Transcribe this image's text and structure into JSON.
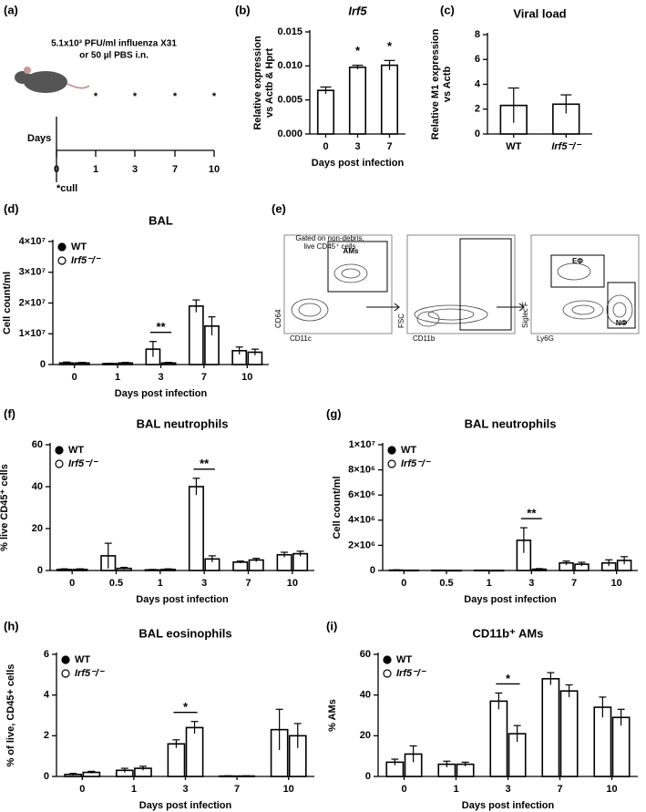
{
  "panel_a": {
    "panel_label": "(a)",
    "line1": "5.1x10³ PFU/ml influenza X31",
    "line2": "or 50 µl PBS i.n.",
    "axis_label": "Days",
    "days": [
      "0",
      "1",
      "3",
      "7",
      "10"
    ],
    "cull_marker": "*",
    "cull_note": "*cull"
  },
  "panel_e": {
    "panel_label": "(e)",
    "gate_note": [
      "Gated on non-debris,",
      "live CD45⁺ cells"
    ],
    "gate_am": "AMs",
    "plot1_y": "CD64",
    "plot1_x": "CD11c",
    "plot2_y": "FSC",
    "plot2_x": "CD11b",
    "plot3_y": "Siglec F",
    "plot3_x": "Ly6G",
    "gate_eos": "EΦ",
    "gate_neut": "NΦ"
  },
  "chart_data": [
    {
      "panel_label": "(b)",
      "type": "bar",
      "title": "Irf5",
      "title_italic": true,
      "ylabel": [
        "Relative expression",
        "vs Actb & Hprt"
      ],
      "xlabel": "Days post infection",
      "categories": [
        "0",
        "3",
        "7"
      ],
      "values": [
        0.0064,
        0.0098,
        0.0101
      ],
      "errors": [
        0.0005,
        0.0003,
        0.0007
      ],
      "ylim": [
        0,
        0.015
      ],
      "yticks": [
        {
          "value": 0,
          "label": "0.000"
        },
        {
          "value": 0.005,
          "label": "0.005"
        },
        {
          "value": 0.01,
          "label": "0.010"
        },
        {
          "value": 0.015,
          "label": "0.015"
        }
      ],
      "annotations": [
        {
          "label": "*",
          "category": "3"
        },
        {
          "label": "*",
          "category": "7"
        }
      ]
    },
    {
      "panel_label": "(c)",
      "type": "bar",
      "title": "Viral load",
      "ylabel": [
        "Relative M1 expression",
        "vs Actb"
      ],
      "categories": [
        "WT",
        "Irf5⁻/⁻"
      ],
      "values": [
        2.3,
        2.4
      ],
      "errors": [
        1.4,
        0.75
      ],
      "ylim": [
        0,
        8
      ],
      "yticks": [
        0,
        2,
        4,
        6,
        8
      ]
    },
    {
      "panel_label": "(d)",
      "type": "grouped_bar",
      "title": "BAL",
      "ylabel": [
        "Cell count/ml"
      ],
      "xlabel": "Days post infection",
      "categories": [
        "0",
        "1",
        "3",
        "7",
        "10"
      ],
      "legend": "upper left",
      "series": [
        {
          "name": "WT",
          "color": "#000000",
          "values": [
            500000,
            300000,
            5000000,
            19000000,
            4500000
          ],
          "errors": [
            300000,
            100000,
            2500000,
            2000000,
            1200000
          ]
        },
        {
          "name": "Irf5⁻/⁻",
          "color": "#ffffff",
          "values": [
            500000,
            500000,
            500000,
            12500000,
            4000000
          ],
          "errors": [
            200000,
            200000,
            200000,
            3000000,
            1000000
          ]
        }
      ],
      "ylim": [
        0,
        40000000
      ],
      "yticks": [
        0,
        {
          "value": 10000000,
          "label": "1×10⁷"
        },
        {
          "value": 20000000,
          "label": "2×10⁷"
        },
        {
          "value": 30000000,
          "label": "3×10⁷"
        },
        {
          "value": 40000000,
          "label": "4×10⁷"
        }
      ],
      "annotations": [
        {
          "label": "**",
          "category": "3"
        }
      ]
    },
    {
      "panel_label": "(f)",
      "type": "grouped_bar",
      "title": "BAL neutrophils",
      "ylabel": [
        "% live CD45⁺ cells"
      ],
      "xlabel": "Days post infection",
      "categories": [
        "0",
        "0.5",
        "1",
        "3",
        "7",
        "10"
      ],
      "legend": "upper left",
      "series": [
        {
          "name": "WT",
          "color": "#000000",
          "values": [
            0.5,
            7,
            0.3,
            40,
            4,
            7.5
          ],
          "errors": [
            0.3,
            6,
            0.2,
            4,
            0.5,
            1.2
          ]
        },
        {
          "name": "Irf5⁻/⁻",
          "color": "#ffffff",
          "values": [
            0.5,
            1,
            0.5,
            5.5,
            5,
            8
          ],
          "errors": [
            0.3,
            0.5,
            0.3,
            1.5,
            0.8,
            1.2
          ]
        }
      ],
      "ylim": [
        0,
        60
      ],
      "yticks": [
        0,
        20,
        40,
        60
      ],
      "annotations": [
        {
          "label": "**",
          "category": "3"
        }
      ]
    },
    {
      "panel_label": "(g)",
      "type": "grouped_bar",
      "title": "BAL neutrophils",
      "ylabel": [
        "Cell count/ml"
      ],
      "xlabel": "Days post infection",
      "categories": [
        "0",
        "0.5",
        "1",
        "3",
        "7",
        "10"
      ],
      "legend": "upper left",
      "series": [
        {
          "name": "WT",
          "color": "#000000",
          "values": [
            30000,
            20000,
            20000,
            2400000,
            600000,
            600000
          ],
          "errors": [
            20000,
            10000,
            10000,
            1000000,
            150000,
            250000
          ]
        },
        {
          "name": "Irf5⁻/⁻",
          "color": "#ffffff",
          "values": [
            20000,
            10000,
            10000,
            100000,
            500000,
            800000
          ],
          "errors": [
            10000,
            5000,
            5000,
            50000,
            150000,
            300000
          ]
        }
      ],
      "ylim": [
        0,
        10000000
      ],
      "yticks": [
        0,
        {
          "value": 2000000,
          "label": "2×10⁶"
        },
        {
          "value": 4000000,
          "label": "4×10⁶"
        },
        {
          "value": 6000000,
          "label": "6×10⁶"
        },
        {
          "value": 8000000,
          "label": "8×10⁶"
        },
        {
          "value": 10000000,
          "label": "1×10⁷"
        }
      ],
      "annotations": [
        {
          "label": "**",
          "category": "3"
        }
      ]
    },
    {
      "panel_label": "(h)",
      "type": "grouped_bar",
      "title": "BAL eosinophils",
      "ylabel": [
        "% of live, CD45+ cells"
      ],
      "xlabel": "Days post infection",
      "categories": [
        "0",
        "1",
        "3",
        "7",
        "10"
      ],
      "legend": "upper left",
      "series": [
        {
          "name": "WT",
          "color": "#000000",
          "values": [
            0.1,
            0.3,
            1.6,
            0.02,
            2.3
          ],
          "errors": [
            0.05,
            0.1,
            0.2,
            0.01,
            1.0
          ]
        },
        {
          "name": "Irf5⁻/⁻",
          "color": "#ffffff",
          "values": [
            0.2,
            0.4,
            2.4,
            0.02,
            2.0
          ],
          "errors": [
            0.05,
            0.1,
            0.3,
            0.01,
            0.6
          ]
        }
      ],
      "ylim": [
        0,
        6
      ],
      "yticks": [
        0,
        2,
        4,
        6
      ],
      "annotations": [
        {
          "label": "*",
          "category": "3"
        }
      ]
    },
    {
      "panel_label": "(i)",
      "type": "grouped_bar",
      "title": "CD11b⁺ AMs",
      "ylabel": [
        "% AMs"
      ],
      "xlabel": "Days post infection",
      "categories": [
        "0",
        "1",
        "3",
        "7",
        "10"
      ],
      "legend": "upper left",
      "series": [
        {
          "name": "WT",
          "color": "#000000",
          "values": [
            7,
            6,
            37,
            48,
            34
          ],
          "errors": [
            1.5,
            1.5,
            4,
            3,
            5
          ]
        },
        {
          "name": "Irf5⁻/⁻",
          "color": "#ffffff",
          "values": [
            11,
            6,
            21,
            42,
            29
          ],
          "errors": [
            4,
            1,
            4,
            3,
            4
          ]
        }
      ],
      "ylim": [
        0,
        60
      ],
      "yticks": [
        0,
        20,
        40,
        60
      ],
      "annotations": [
        {
          "label": "*",
          "category": "3"
        }
      ]
    }
  ]
}
